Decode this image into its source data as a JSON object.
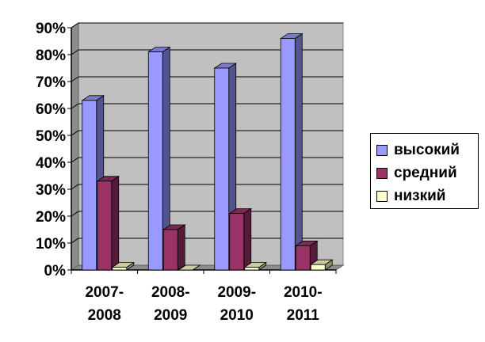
{
  "chart_data": {
    "type": "bar",
    "title": "",
    "xlabel": "",
    "ylabel": "",
    "categories": [
      "2007-2008",
      "2008-2009",
      "2009-2010",
      "2010-2011"
    ],
    "series": [
      {
        "name": "высокий",
        "values": [
          63,
          81,
          75,
          86
        ],
        "color": "#9999ff"
      },
      {
        "name": "средний",
        "values": [
          33,
          15,
          21,
          9
        ],
        "color": "#993366"
      },
      {
        "name": "низкий",
        "values": [
          1,
          0,
          1,
          2
        ],
        "color": "#ffffcc"
      }
    ],
    "ylim": [
      0,
      90
    ],
    "yticks": [
      "0%",
      "10%",
      "20%",
      "30%",
      "40%",
      "50%",
      "60%",
      "70%",
      "80%",
      "90%"
    ],
    "grid": true,
    "legend_position": "right",
    "plot_area_color": "#c0c0c0",
    "gridline_color": "#000000"
  }
}
